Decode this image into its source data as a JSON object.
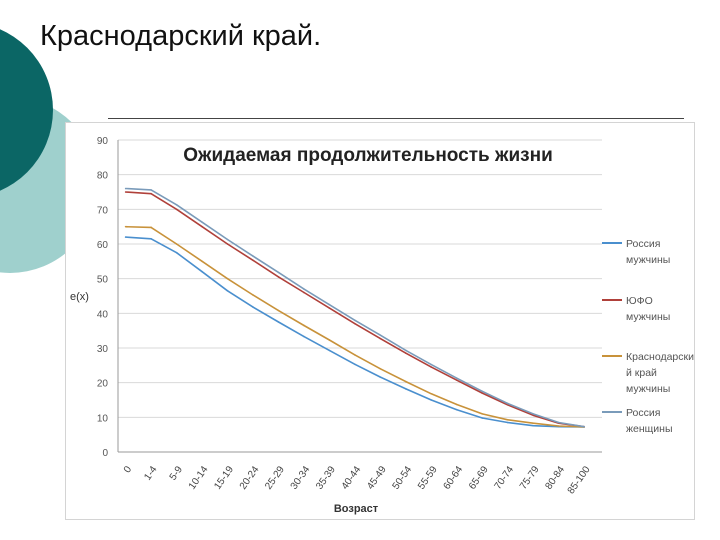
{
  "slide": {
    "title": "Краснодарский край."
  },
  "theme": {
    "deco_dark": "#0b6665",
    "deco_light": "#9fd0cd",
    "line_color": "#444444"
  },
  "chart_data": {
    "type": "line",
    "title": "Ожидаемая продолжительность жизни",
    "xlabel": "Возраст",
    "ylabel": "e(x)",
    "ylim": [
      0,
      90
    ],
    "yticks": [
      0,
      10,
      20,
      30,
      40,
      50,
      60,
      70,
      80,
      90
    ],
    "grid": "horizontal",
    "legend_position": "right",
    "categories": [
      "0",
      "1-4",
      "5-9",
      "10-14",
      "15-19",
      "20-24",
      "25-29",
      "30-34",
      "35-39",
      "40-44",
      "45-49",
      "50-54",
      "55-59",
      "60-64",
      "65-69",
      "70-74",
      "75-79",
      "80-84",
      "85-100"
    ],
    "series": [
      {
        "name": "Россия мужчины",
        "color": "#4a8fce",
        "values": [
          62.0,
          61.5,
          57.5,
          52.0,
          46.5,
          41.8,
          37.5,
          33.3,
          29.3,
          25.3,
          21.6,
          18.2,
          15.0,
          12.2,
          9.8,
          8.5,
          7.6,
          7.3,
          7.2
        ]
      },
      {
        "name": "ЮФО мужчины",
        "color": "#b0403a",
        "values": [
          75.0,
          74.5,
          70.0,
          65.0,
          60.0,
          55.3,
          50.5,
          46.0,
          41.5,
          37.0,
          32.7,
          28.5,
          24.5,
          20.7,
          17.0,
          13.6,
          10.6,
          8.3,
          7.3
        ]
      },
      {
        "name": "Краснодарский край мужчины",
        "color": "#c8923a",
        "values": [
          65.0,
          64.8,
          60.0,
          55.0,
          50.0,
          45.3,
          40.8,
          36.5,
          32.3,
          28.0,
          24.0,
          20.3,
          16.8,
          13.7,
          11.0,
          9.3,
          8.3,
          7.5,
          7.2
        ]
      },
      {
        "name": "Россия женщины",
        "color": "#7a9bba",
        "values": [
          76.0,
          75.6,
          71.3,
          66.3,
          61.3,
          56.5,
          51.8,
          47.0,
          42.5,
          38.0,
          33.7,
          29.3,
          25.2,
          21.3,
          17.5,
          14.0,
          11.0,
          8.5,
          7.3
        ]
      }
    ]
  }
}
